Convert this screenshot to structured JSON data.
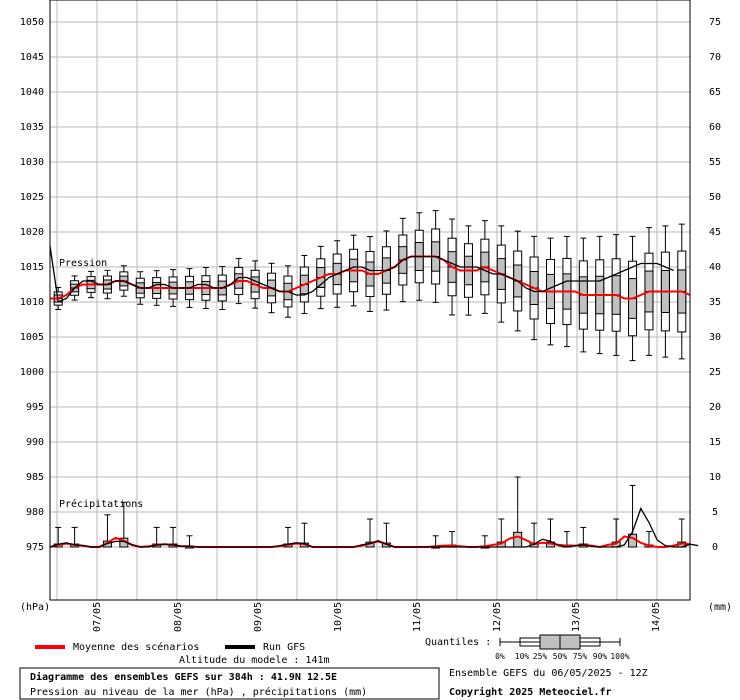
{
  "chart_data": {
    "type": "box-ensemble",
    "left_axis": {
      "unit": "(hPa)",
      "ticks": [
        975,
        980,
        985,
        990,
        995,
        1000,
        1005,
        1010,
        1015,
        1020,
        1025,
        1030,
        1035,
        1040,
        1045,
        1050
      ],
      "range": [
        970,
        1050
      ]
    },
    "right_axis": {
      "unit": "(mm)",
      "ticks": [
        0,
        5,
        10,
        15,
        20,
        25,
        30,
        35,
        40,
        45,
        50,
        55,
        60,
        65,
        70,
        75
      ],
      "range": [
        -5,
        75
      ]
    },
    "x_ticks": [
      "07/05",
      "08/05",
      "09/05",
      "10/05",
      "11/05",
      "12/05",
      "13/05",
      "14/05"
    ],
    "annotations": {
      "pressure_label": "Pression",
      "precip_label": "Précipitations"
    },
    "legend": {
      "mean_label": "Moyenne des scénarios",
      "mean_color": "#ff0000",
      "gfs_label": "Run GFS",
      "gfs_color": "#000000",
      "box_fill": "#c0c0c0"
    },
    "quantiles": {
      "label": "Quantiles :",
      "values": [
        "0%",
        "10%",
        "25%",
        "50%",
        "75%",
        "90%",
        "100%"
      ]
    },
    "pressure": {
      "gfs_run": [
        1018,
        1010,
        1010.5,
        1012,
        1013,
        1013,
        1012.5,
        1012.5,
        1013,
        1013,
        1012.5,
        1012,
        1012,
        1012.5,
        1012.5,
        1012,
        1012,
        1012,
        1012.5,
        1012.5,
        1012,
        1012,
        1012.5,
        1013.5,
        1013.5,
        1013,
        1012.5,
        1012,
        1011.5,
        1011.5,
        1011,
        1011,
        1011.5,
        1012.5,
        1013.5,
        1014,
        1014.5,
        1015,
        1015,
        1014.5,
        1014.5,
        1014.5,
        1015,
        1016,
        1016.5,
        1016.5,
        1016.5,
        1016.5,
        1016,
        1015.5,
        1015,
        1015,
        1015,
        1014.5,
        1014,
        1014,
        1013.5,
        1013,
        1012,
        1011.5,
        1011.5,
        1012,
        1012.5,
        1013,
        1013,
        1013,
        1013,
        1013,
        1013.5,
        1014,
        1014.5,
        1015,
        1015.5,
        1015.5,
        1015.5,
        1015,
        1014.5
      ],
      "mean": [
        1010.5,
        1010.5,
        1011,
        1012,
        1012.5,
        1012.5,
        1012.5,
        1012.5,
        1013,
        1013,
        1012.5,
        1012,
        1012,
        1012,
        1012,
        1012,
        1012,
        1012,
        1012,
        1012,
        1012,
        1012,
        1012.5,
        1013,
        1013,
        1012.5,
        1012,
        1012,
        1011.5,
        1011.5,
        1012,
        1012.5,
        1013,
        1013.5,
        1014,
        1014,
        1014.5,
        1014.5,
        1014.5,
        1014,
        1014,
        1014.5,
        1015,
        1016,
        1016.5,
        1016.5,
        1016.5,
        1016.5,
        1016,
        1015,
        1014.5,
        1014.5,
        1014.5,
        1015,
        1014.5,
        1014,
        1013.5,
        1013,
        1012.5,
        1012,
        1011.5,
        1011.5,
        1011.5,
        1011.5,
        1011.5,
        1011,
        1011,
        1011,
        1011,
        1011,
        1010.5,
        1010.5,
        1011,
        1011.5,
        1011.5,
        1011.5,
        1011.5,
        1011.5,
        1011
      ]
    },
    "precip": {
      "gfs_run": [
        0,
        0.4,
        0.6,
        0.3,
        0.2,
        0,
        0,
        0.5,
        0.8,
        0.8,
        0.3,
        0,
        0,
        0.3,
        0.4,
        0.3,
        0.1,
        0.1,
        0,
        0,
        0,
        0,
        0,
        0,
        0,
        0,
        0,
        0,
        0.2,
        0.4,
        0.6,
        0.5,
        0,
        0,
        0,
        0,
        0,
        0,
        0.3,
        0.5,
        0.9,
        0.4,
        0,
        0,
        0,
        0,
        0,
        0,
        0,
        0,
        0,
        0,
        0,
        0,
        0,
        0,
        0,
        0,
        0,
        0.4,
        1.1,
        0.8,
        0.2,
        0,
        0.2,
        0.3,
        0.1,
        0,
        0,
        0,
        0.3,
        2.2,
        5.5,
        3.5,
        1.0,
        0.2,
        0,
        0,
        0.4,
        0.2
      ],
      "mean": [
        0,
        0.3,
        0.5,
        0.3,
        0.2,
        0,
        0,
        0.6,
        1.3,
        0.9,
        0.3,
        0,
        0.1,
        0.3,
        0.4,
        0.3,
        0.1,
        0.1,
        0,
        0,
        0,
        0,
        0,
        0,
        0,
        0,
        0,
        0,
        0.1,
        0.3,
        0.5,
        0.4,
        0,
        0,
        0,
        0,
        0,
        0,
        0.2,
        0.5,
        0.8,
        0.4,
        0,
        0,
        0,
        0,
        0,
        0.1,
        0.2,
        0.2,
        0.1,
        0,
        0,
        0.1,
        0.3,
        0.5,
        1.2,
        1.5,
        1.0,
        0.4,
        0.6,
        0.5,
        0.3,
        0.2,
        0.2,
        0.3,
        0.2,
        0,
        0.3,
        0.5,
        1.5,
        1.3,
        0.6,
        0.2,
        0,
        0,
        0.2,
        0.5,
        0.4
      ]
    }
  },
  "footer": {
    "title": "Diagramme des ensembles GEFS sur 384h : 41.9N 12.5E",
    "subtitle": "Pression au niveau de la mer (hPa) , précipitations (mm)",
    "altitude": "Altitude du modele : 141m",
    "run": "Ensemble GEFS du 06/05/2025 - 12Z",
    "copyright": "Copyright 2025 Meteociel.fr"
  }
}
